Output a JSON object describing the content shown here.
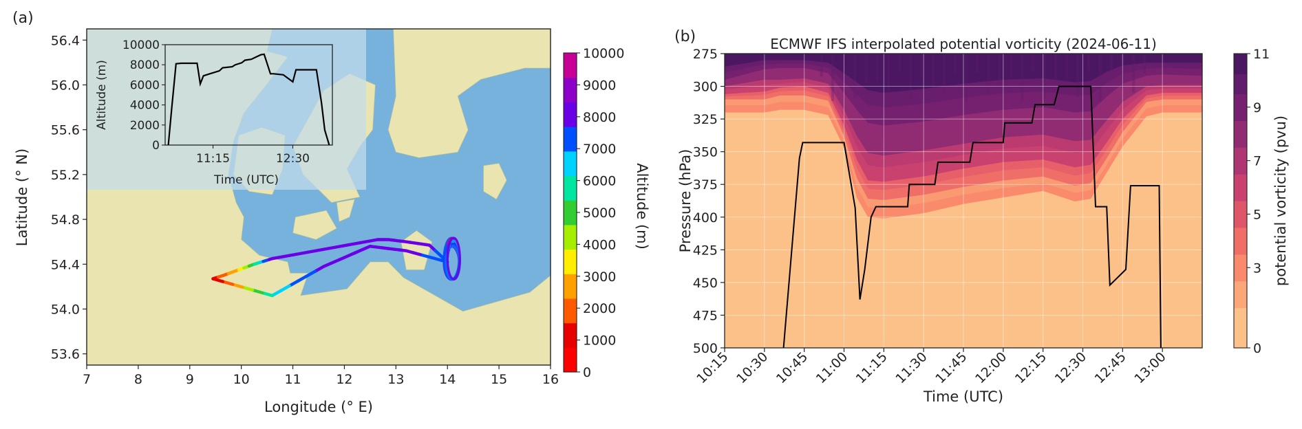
{
  "chart_data": [
    {
      "panel": "(a)",
      "type": "line",
      "xlabel": "Longitude (° E)",
      "ylabel": "Latitude (° N)",
      "xlim": [
        7,
        16
      ],
      "ylim": [
        53.5,
        56.5
      ],
      "xticks": [
        "7",
        "8",
        "9",
        "10",
        "11",
        "12",
        "13",
        "14",
        "15",
        "16"
      ],
      "yticks": [
        "53.6",
        "54.0",
        "54.4",
        "54.8",
        "55.2",
        "55.6",
        "56.0",
        "56.4"
      ],
      "track": {
        "lon": [
          9.45,
          9.65,
          9.95,
          10.25,
          10.6,
          12.65,
          12.85,
          13.2,
          13.65,
          14.0,
          13.2,
          12.5,
          11.6,
          10.6,
          9.45
        ],
        "lat": [
          54.27,
          54.3,
          54.35,
          54.4,
          54.45,
          54.62,
          54.62,
          54.6,
          54.57,
          54.42,
          54.52,
          54.56,
          54.38,
          54.12,
          54.27
        ],
        "altitude_m": [
          1000,
          2000,
          3000,
          5500,
          8000,
          8000,
          8000,
          8000,
          8000,
          7000,
          8000,
          8000,
          8000,
          6500,
          500
        ]
      },
      "loop_center": {
        "lon": 14.1,
        "lat": 54.43
      },
      "grid": false,
      "colorbar": {
        "label": "Altitude (m)",
        "min": 0,
        "max": 10000,
        "ticks": [
          "0",
          "1000",
          "2000",
          "3000",
          "4000",
          "5000",
          "6000",
          "7000",
          "8000",
          "9000",
          "10000"
        ],
        "colors": [
          "#ff0000",
          "#e60000",
          "#ff5a00",
          "#ffa000",
          "#ffee00",
          "#a6ee00",
          "#32cd32",
          "#00e6a0",
          "#00d2ff",
          "#0050ff",
          "#6a00e6",
          "#8c00c8",
          "#c80096"
        ]
      },
      "inset": {
        "xlabel": "Time (UTC)",
        "ylabel": "Altitude (m)",
        "ylim": [
          0,
          10000
        ],
        "yticks": [
          "0",
          "2000",
          "4000",
          "6000",
          "8000",
          "10000"
        ],
        "xticks": [
          "11:15",
          "12:30"
        ],
        "xlim_hours": [
          10.5,
          13.12
        ],
        "time_h": [
          10.55,
          10.6,
          10.67,
          10.75,
          11.0,
          11.05,
          11.1,
          11.2,
          11.35,
          11.4,
          11.55,
          11.6,
          11.7,
          11.75,
          11.85,
          11.9,
          12.0,
          12.05,
          12.15,
          12.2,
          12.35,
          12.5,
          12.55,
          12.6,
          12.65,
          12.87,
          12.95,
          13.0,
          13.07
        ],
        "alt_m": [
          0,
          3500,
          8100,
          8150,
          8150,
          6100,
          6900,
          7100,
          7400,
          7700,
          7800,
          8000,
          8200,
          8450,
          8550,
          8700,
          9000,
          9050,
          7100,
          7100,
          7000,
          6300,
          7500,
          7500,
          7500,
          7500,
          4200,
          1500,
          0
        ]
      },
      "map_colors": {
        "sea": "#77b2dd",
        "land": "#e9e4b0",
        "inset_bg": "#c4dceb"
      }
    },
    {
      "panel": "(b)",
      "type": "heatmap",
      "title": "ECMWF IFS interpolated potential vorticity (2024-06-11)",
      "xlabel": "Time (UTC)",
      "ylabel": "Pressure (hPa)",
      "xticks": [
        "10:15",
        "10:30",
        "10:45",
        "11:00",
        "11:15",
        "11:30",
        "11:45",
        "12:00",
        "12:15",
        "12:30",
        "12:45",
        "13:00"
      ],
      "xlim_hours": [
        10.25,
        13.25
      ],
      "yticks": [
        "275",
        "300",
        "325",
        "350",
        "375",
        "400",
        "425",
        "450",
        "475",
        "500"
      ],
      "ylim_hpa": [
        500,
        275
      ],
      "grid": true,
      "colorbar": {
        "label": "potential vorticity (pvu)",
        "min": 0,
        "max": 11,
        "ticks": [
          "0",
          "3",
          "5",
          "7",
          "9",
          "11"
        ],
        "levels": [
          0,
          1.5,
          2.5,
          3.5,
          4.5,
          5.5,
          6.5,
          7.5,
          8.5,
          9.5,
          10.25,
          11
        ],
        "colors": [
          "#fcc089",
          "#fca77a",
          "#f98b6c",
          "#f06e68",
          "#e05669",
          "#c9426f",
          "#ae3673",
          "#912c73",
          "#76216f",
          "#5f1d6b",
          "#4b1763"
        ]
      },
      "pv_contours": {
        "time_h": [
          10.25,
          10.5,
          10.6,
          10.75,
          10.9,
          11.0,
          11.08,
          11.15,
          11.25,
          11.5,
          11.75,
          12.0,
          12.25,
          12.45,
          12.55,
          12.65,
          12.75,
          12.9,
          13.0,
          13.25
        ],
        "p_for_pv": {
          "1.5": [
            320,
            320,
            318,
            318,
            322,
            347,
            385,
            400,
            401,
            397,
            390,
            385,
            380,
            388,
            386,
            366,
            346,
            323,
            320,
            320
          ],
          "3": [
            310,
            310,
            307,
            307,
            311,
            338,
            370,
            386,
            387,
            383,
            377,
            372,
            369,
            376,
            374,
            355,
            335,
            312,
            310,
            310
          ],
          "5": [
            306,
            304,
            301,
            300,
            305,
            330,
            356,
            372,
            373,
            369,
            363,
            358,
            356,
            362,
            360,
            343,
            325,
            307,
            305,
            305
          ],
          "7": [
            300,
            295,
            295,
            294,
            298,
            318,
            338,
            351,
            353,
            349,
            344,
            339,
            337,
            342,
            341,
            326,
            312,
            300,
            299,
            299
          ],
          "9": [
            295,
            287,
            286,
            286,
            290,
            305,
            318,
            328,
            330,
            327,
            322,
            318,
            316,
            320,
            319,
            308,
            298,
            292,
            291,
            292
          ],
          "10.25": [
            285,
            280,
            280,
            280,
            282,
            290,
            297,
            303,
            305,
            302,
            298,
            295,
            294,
            297,
            296,
            289,
            284,
            282,
            282,
            282
          ]
        }
      },
      "flight_track": {
        "time_h": [
          10.62,
          10.72,
          10.74,
          11.0,
          11.07,
          11.1,
          11.13,
          11.17,
          11.2,
          11.4,
          11.41,
          11.57,
          11.59,
          11.79,
          11.81,
          12.0,
          12.01,
          12.18,
          12.2,
          12.32,
          12.35,
          12.55,
          12.58,
          12.65,
          12.67,
          12.77,
          12.8,
          12.98,
          12.99
        ],
        "p_hpa": [
          500,
          355,
          343,
          343,
          393,
          463,
          440,
          400,
          392,
          392,
          375,
          375,
          358,
          358,
          343,
          343,
          328,
          328,
          314,
          314,
          300,
          300,
          392,
          392,
          452,
          440,
          376,
          376,
          500
        ]
      }
    }
  ]
}
